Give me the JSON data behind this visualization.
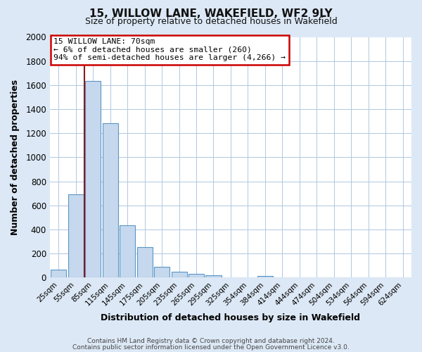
{
  "title": "15, WILLOW LANE, WAKEFIELD, WF2 9LY",
  "subtitle": "Size of property relative to detached houses in Wakefield",
  "xlabel": "Distribution of detached houses by size in Wakefield",
  "ylabel": "Number of detached properties",
  "categories": [
    "25sqm",
    "55sqm",
    "85sqm",
    "115sqm",
    "145sqm",
    "175sqm",
    "205sqm",
    "235sqm",
    "265sqm",
    "295sqm",
    "325sqm",
    "354sqm",
    "384sqm",
    "414sqm",
    "444sqm",
    "474sqm",
    "504sqm",
    "534sqm",
    "564sqm",
    "594sqm",
    "624sqm"
  ],
  "values": [
    65,
    695,
    1635,
    1285,
    435,
    255,
    88,
    52,
    30,
    20,
    0,
    0,
    12,
    0,
    0,
    0,
    0,
    0,
    0,
    0,
    0
  ],
  "bar_color": "#c5d8ed",
  "bar_edge_color": "#5a96c8",
  "marker_line_color": "#8b1a1a",
  "annotation_title": "15 WILLOW LANE: 70sqm",
  "annotation_line1": "← 6% of detached houses are smaller (260)",
  "annotation_line2": "94% of semi-detached houses are larger (4,266) →",
  "annotation_box_color": "#ffffff",
  "annotation_box_edgecolor": "#cc0000",
  "ylim": [
    0,
    2000
  ],
  "yticks": [
    0,
    200,
    400,
    600,
    800,
    1000,
    1200,
    1400,
    1600,
    1800,
    2000
  ],
  "footer1": "Contains HM Land Registry data © Crown copyright and database right 2024.",
  "footer2": "Contains public sector information licensed under the Open Government Licence v3.0.",
  "bg_color": "#dce8f5",
  "plot_bg_color": "#ffffff",
  "grid_color": "#b0c8e0"
}
